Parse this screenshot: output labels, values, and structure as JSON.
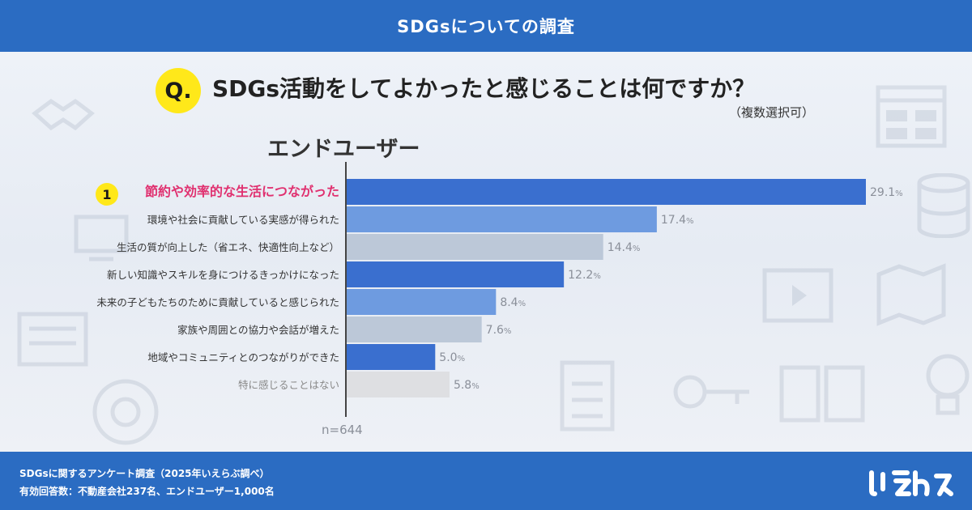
{
  "header": {
    "title": "SDGsについての調査"
  },
  "question": {
    "badge": "Q.",
    "text": "SDGs活動をしてよかったと感じることは何ですか？",
    "note": "（複数選択可）"
  },
  "segment_label": "エンドユーザー",
  "rank_badge": "1",
  "sample_size": "n=644",
  "footer": {
    "line1": "SDGsに関するアンケート調査（2025年いえらぶ調べ）",
    "line2": "有効回答数：不動産会社237名、エンドユーザー1,000名"
  },
  "logo_alt": "いえらぶ",
  "colors": {
    "header": "#2b6cc2",
    "bar_dark": "#3a6fcf",
    "bar_mid": "#6e9be0",
    "bar_light": "#bcc8d8",
    "bar_gray": "#dedfe2",
    "highlight_text": "#e0306f",
    "badge_yellow": "#ffe81a"
  },
  "chart_data": {
    "type": "bar",
    "orientation": "horizontal",
    "categories": [
      "節約や効率的な生活につながった",
      "環境や社会に貢献している実感が得られた",
      "生活の質が向上した（省エネ、快適性向上など）",
      "新しい知識やスキルを身につけるきっかけになった",
      "未来の子どもたちのために貢献していると感じられた",
      "家族や周囲との協力や会話が増えた",
      "地域やコミュニティとのつながりができた",
      "特に感じることはない"
    ],
    "values": [
      29.1,
      17.4,
      14.4,
      12.2,
      8.4,
      7.6,
      5.0,
      5.8
    ],
    "value_labels": [
      "29.1",
      "17.4",
      "14.4",
      "12.2",
      "8.4",
      "7.6",
      "5.0",
      "5.8"
    ],
    "unit": "%",
    "bar_colors": [
      "#3a6fcf",
      "#6e9be0",
      "#bcc8d8",
      "#3a6fcf",
      "#6e9be0",
      "#bcc8d8",
      "#3a6fcf",
      "#dedfe2"
    ],
    "label_colors": [
      "#e0306f",
      "#333333",
      "#333333",
      "#333333",
      "#333333",
      "#333333",
      "#333333",
      "#888888"
    ],
    "highlight_index": 0,
    "xlim": [
      0,
      29.1
    ],
    "grid": false,
    "legend": "none"
  }
}
